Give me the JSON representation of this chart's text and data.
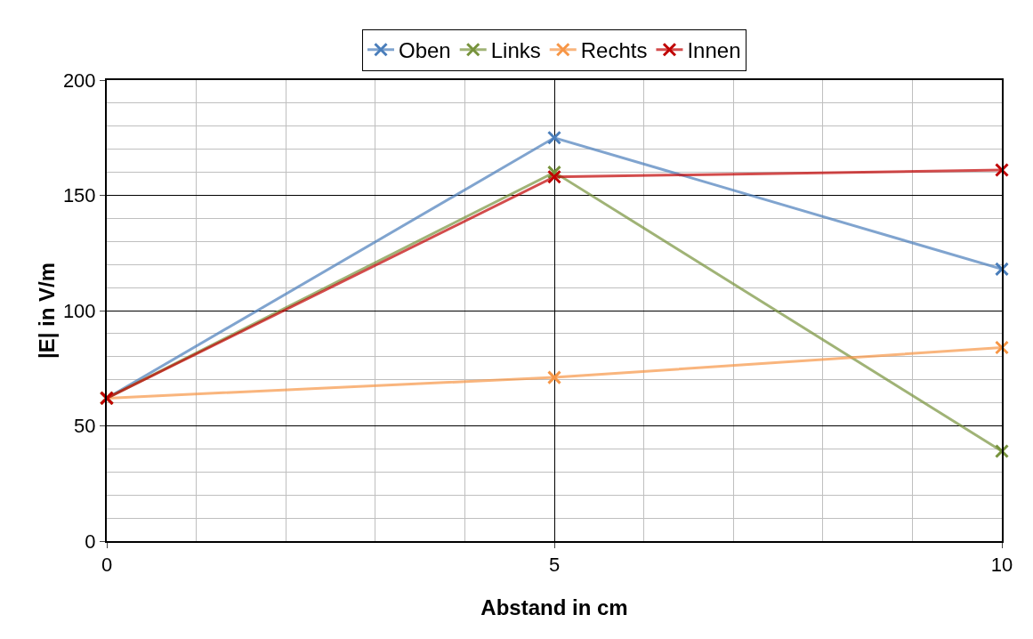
{
  "chart_data": {
    "type": "line",
    "xlabel": "Abstand in cm",
    "ylabel": "|E| in V/m",
    "x": [
      0,
      5,
      10
    ],
    "series": [
      {
        "name": "Oben",
        "color": "#4a7ebb",
        "values": [
          62,
          175,
          118
        ]
      },
      {
        "name": "Links",
        "color": "#77933c",
        "values": [
          62,
          160,
          39
        ]
      },
      {
        "name": "Rechts",
        "color": "#f79646",
        "values": [
          62,
          71,
          84
        ]
      },
      {
        "name": "Innen",
        "color": "#c00000",
        "values": [
          62,
          158,
          161
        ]
      }
    ],
    "xlim": [
      0,
      10
    ],
    "xticks": [
      0,
      5,
      10
    ],
    "ylim": [
      0,
      200
    ],
    "yticks": [
      0,
      50,
      100,
      150,
      200
    ],
    "grid": true,
    "legend": "top",
    "marker": "cross",
    "line_style": "solid"
  }
}
